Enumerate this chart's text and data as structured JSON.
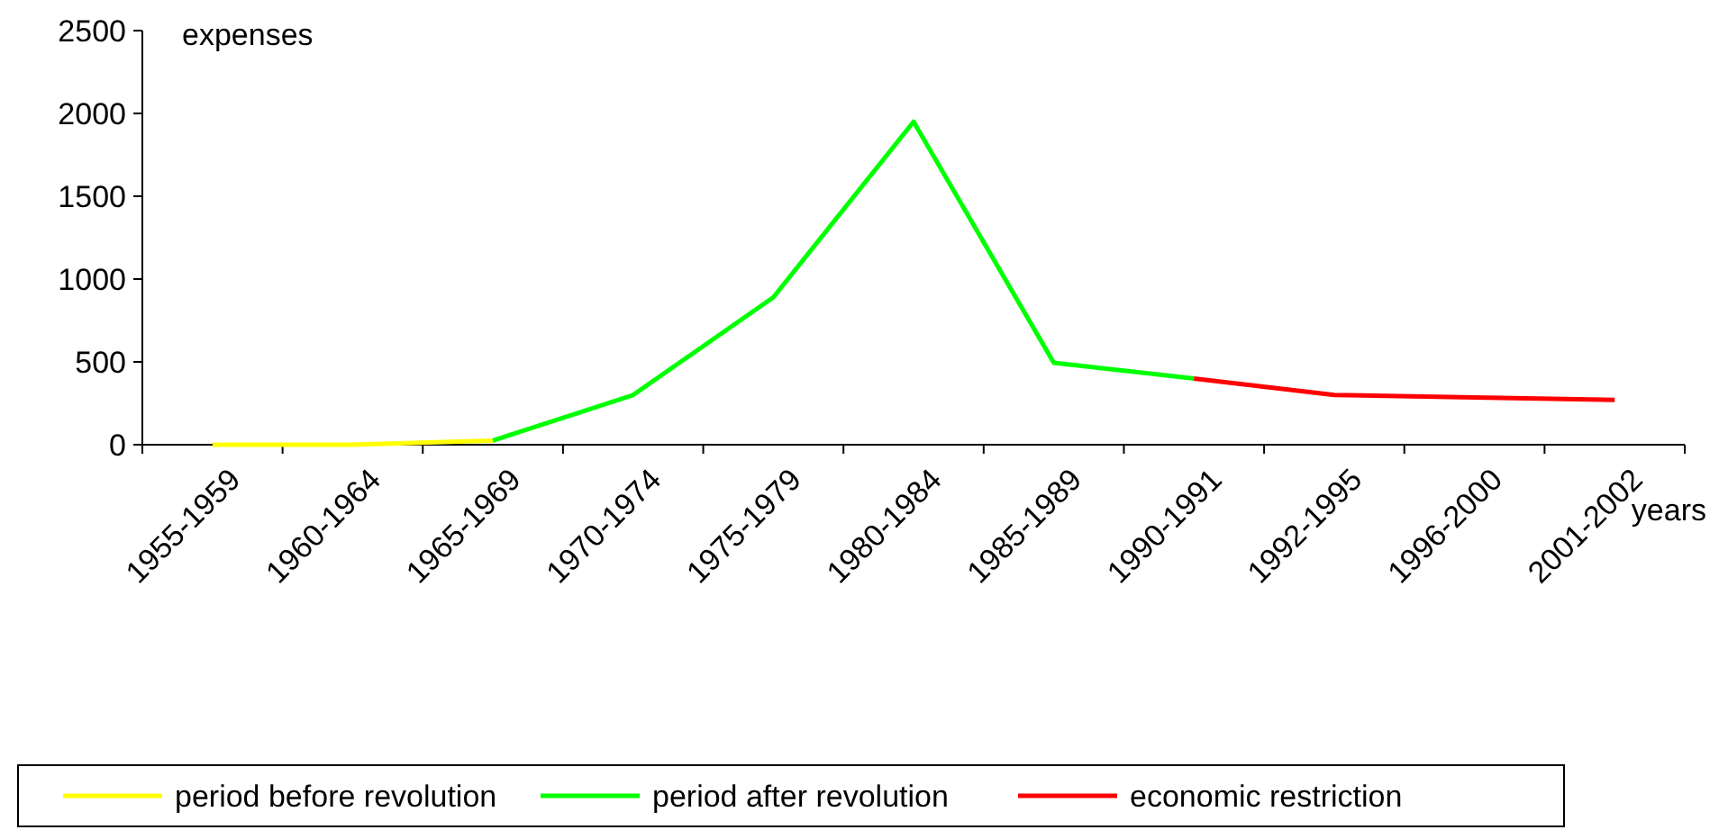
{
  "chart_data": {
    "type": "line",
    "xlabel": "years",
    "ylabel": "expenses",
    "categories": [
      "1955-1959",
      "1960-1964",
      "1965-1969",
      "1970-1974",
      "1975-1979",
      "1980-1984",
      "1985-1989",
      "1990-1991",
      "1992-1995",
      "1996-2000",
      "2001-2002"
    ],
    "series": [
      {
        "name": "period before revolution",
        "color": "#ffff00",
        "values": [
          0,
          0,
          25,
          null,
          null,
          null,
          null,
          null,
          null,
          null,
          null
        ]
      },
      {
        "name": "period after revolution",
        "color": "#00ff00",
        "values": [
          null,
          null,
          25,
          300,
          890,
          1950,
          495,
          400,
          null,
          null,
          null
        ]
      },
      {
        "name": "economic restriction",
        "color": "#ff0000",
        "values": [
          null,
          null,
          null,
          null,
          null,
          null,
          null,
          400,
          300,
          285,
          270
        ]
      }
    ],
    "ylim": [
      0,
      2500
    ],
    "yticks": [
      0,
      500,
      1000,
      1500,
      2000,
      2500
    ],
    "grid": false,
    "legend": "bottom",
    "marker": "none",
    "line_style": "solid"
  }
}
